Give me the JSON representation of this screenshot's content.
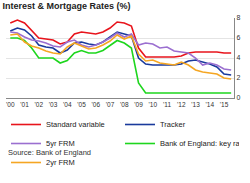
{
  "chart_data": {
    "type": "line",
    "title": "Interest & Mortgage Rates (%)",
    "annotations": [
      "Source: Bank of England"
    ],
    "x": [
      2000,
      2000.5,
      2001,
      2001.5,
      2002,
      2002.5,
      2003,
      2003.5,
      2004,
      2004.5,
      2005,
      2005.5,
      2006,
      2006.5,
      2007,
      2007.5,
      2008,
      2008.5,
      2009,
      2009.5,
      2010,
      2010.5,
      2011,
      2011.5,
      2012,
      2012.5,
      2013,
      2013.5,
      2014,
      2014.5,
      2015,
      2015.5
    ],
    "series": [
      {
        "name": "Standard variable",
        "color": "#e8141c",
        "values": [
          7.5,
          7.8,
          7.5,
          6.8,
          6.0,
          5.9,
          5.8,
          5.4,
          5.6,
          6.4,
          6.6,
          6.5,
          6.4,
          6.6,
          7.0,
          7.6,
          7.5,
          7.2,
          5.0,
          4.1,
          4.1,
          4.1,
          4.1,
          4.1,
          4.2,
          4.5,
          4.6,
          4.6,
          4.6,
          4.6,
          4.5,
          4.5
        ]
      },
      {
        "name": "Tracker",
        "color": "#1a3a9c",
        "values": [
          6.7,
          7.0,
          6.8,
          6.2,
          5.3,
          5.1,
          5.0,
          4.5,
          4.8,
          5.5,
          5.6,
          5.4,
          5.3,
          5.6,
          6.1,
          6.6,
          6.4,
          6.2,
          4.0,
          3.4,
          3.3,
          3.3,
          3.3,
          3.3,
          3.4,
          3.7,
          3.8,
          3.6,
          3.4,
          3.1,
          2.4,
          2.3
        ]
      },
      {
        "name": "5yr FRM",
        "color": "#9b6fd0",
        "values": [
          6.6,
          6.5,
          6.1,
          5.8,
          5.7,
          5.5,
          5.2,
          5.1,
          5.6,
          5.8,
          5.3,
          5.1,
          5.3,
          5.6,
          6.0,
          6.5,
          6.1,
          6.4,
          5.3,
          5.5,
          5.4,
          5.0,
          5.1,
          4.7,
          4.6,
          4.5,
          4.0,
          3.3,
          3.5,
          3.3,
          2.9,
          2.8
        ]
      },
      {
        "name": "Bank of England: key rate",
        "color": "#1ed61e",
        "values": [
          6.0,
          6.0,
          5.75,
          5.0,
          4.0,
          4.0,
          4.0,
          3.5,
          3.75,
          4.5,
          4.75,
          4.5,
          4.5,
          4.75,
          5.25,
          5.75,
          5.5,
          5.0,
          1.5,
          0.5,
          0.5,
          0.5,
          0.5,
          0.5,
          0.5,
          0.5,
          0.5,
          0.5,
          0.5,
          0.5,
          0.5,
          0.5
        ]
      },
      {
        "name": "2yr FRM",
        "color": "#f5a623",
        "values": [
          6.3,
          6.4,
          5.6,
          5.2,
          5.0,
          4.7,
          4.5,
          4.4,
          5.1,
          5.5,
          5.2,
          4.9,
          5.0,
          5.3,
          5.7,
          6.3,
          5.9,
          6.2,
          4.4,
          3.7,
          3.8,
          3.5,
          3.4,
          3.3,
          3.6,
          3.3,
          2.8,
          2.6,
          2.5,
          2.4,
          2.0,
          1.9
        ]
      }
    ],
    "xlim": [
      1999.7,
      2015.7
    ],
    "xticks": [
      {
        "value": 2000,
        "label": "'00"
      },
      {
        "value": 2001,
        "label": "'01"
      },
      {
        "value": 2002,
        "label": "'02"
      },
      {
        "value": 2003,
        "label": "'03"
      },
      {
        "value": 2004,
        "label": "'04"
      },
      {
        "value": 2005,
        "label": "'05"
      },
      {
        "value": 2006,
        "label": "'06"
      },
      {
        "value": 2007,
        "label": "'07"
      },
      {
        "value": 2008,
        "label": "'08"
      },
      {
        "value": 2009,
        "label": "'09"
      },
      {
        "value": 2010,
        "label": "'10"
      },
      {
        "value": 2011,
        "label": "'11"
      },
      {
        "value": 2012,
        "label": "'12"
      },
      {
        "value": 2013,
        "label": "'13"
      },
      {
        "value": 2014,
        "label": "'14"
      },
      {
        "value": 2015,
        "label": "'15"
      }
    ],
    "ylim": [
      0,
      8
    ],
    "yticks": [
      0,
      2,
      4,
      6,
      8
    ],
    "grid": true,
    "legend": "bottom"
  }
}
